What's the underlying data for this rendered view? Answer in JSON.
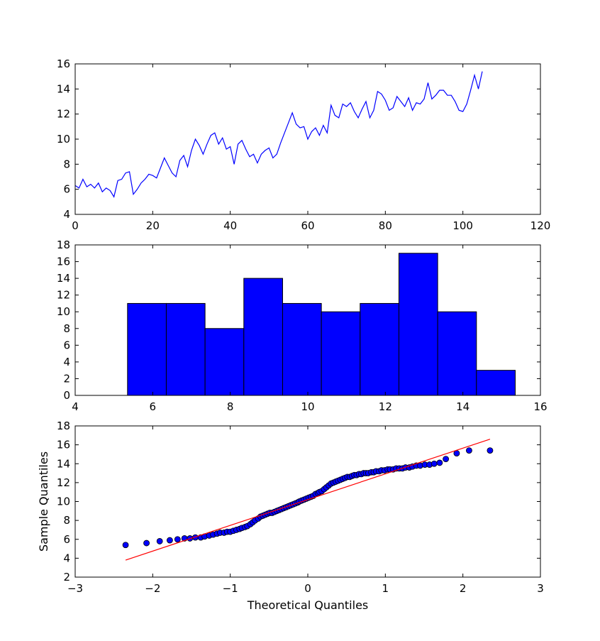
{
  "chart_data": [
    {
      "type": "line",
      "title": "",
      "xlabel": "",
      "ylabel": "",
      "xlim": [
        0,
        120
      ],
      "ylim": [
        4,
        16
      ],
      "xticks": [
        0,
        20,
        40,
        60,
        80,
        100,
        120
      ],
      "yticks": [
        4,
        6,
        8,
        10,
        12,
        14,
        16
      ],
      "grid": false,
      "series": [
        {
          "color": "#0000ff",
          "x": [
            0,
            1,
            2,
            3,
            4,
            5,
            6,
            7,
            8,
            9,
            10,
            11,
            12,
            13,
            14,
            15,
            16,
            17,
            18,
            19,
            20,
            21,
            22,
            23,
            24,
            25,
            26,
            27,
            28,
            29,
            30,
            31,
            32,
            33,
            34,
            35,
            36,
            37,
            38,
            39,
            40,
            41,
            42,
            43,
            44,
            45,
            46,
            47,
            48,
            49,
            50,
            51,
            52,
            53,
            54,
            55,
            56,
            57,
            58,
            59,
            60,
            61,
            62,
            63,
            64,
            65,
            66,
            67,
            68,
            69,
            70,
            71,
            72,
            73,
            74,
            75,
            76,
            77,
            78,
            79,
            80,
            81,
            82,
            83,
            84,
            85,
            86,
            87,
            88,
            89,
            90,
            91,
            92,
            93,
            94,
            95,
            96,
            97,
            98,
            99,
            100,
            101,
            102,
            103,
            104,
            105
          ],
          "y": [
            6.3,
            6.1,
            6.8,
            6.2,
            6.4,
            6.1,
            6.5,
            5.8,
            6.1,
            5.9,
            5.4,
            6.7,
            6.8,
            7.3,
            7.4,
            5.6,
            6.0,
            6.5,
            6.8,
            7.2,
            7.1,
            6.9,
            7.7,
            8.5,
            7.9,
            7.3,
            7.0,
            8.3,
            8.7,
            7.8,
            9.1,
            10.0,
            9.5,
            8.8,
            9.6,
            10.3,
            10.5,
            9.6,
            10.1,
            9.2,
            9.4,
            8.0,
            9.6,
            9.9,
            9.2,
            8.6,
            8.8,
            8.1,
            8.8,
            9.1,
            9.3,
            8.5,
            8.8,
            9.7,
            10.5,
            11.3,
            12.1,
            11.2,
            10.9,
            11.0,
            10.0,
            10.6,
            10.9,
            10.3,
            11.1,
            10.5,
            12.7,
            11.9,
            11.7,
            12.8,
            12.6,
            12.9,
            12.2,
            11.7,
            12.4,
            13.0,
            11.7,
            12.3,
            13.8,
            13.6,
            13.1,
            12.3,
            12.5,
            13.4,
            13.0,
            12.6,
            13.3,
            12.3,
            12.9,
            12.8,
            13.2,
            14.5,
            13.2,
            13.5,
            13.9,
            13.9,
            13.5,
            13.5,
            13.0,
            12.3,
            12.2,
            12.8,
            13.9,
            15.1,
            14.0,
            15.4
          ]
        }
      ]
    },
    {
      "type": "bar",
      "title": "",
      "xlabel": "",
      "ylabel": "",
      "xlim": [
        4,
        16
      ],
      "ylim": [
        0,
        18
      ],
      "xticks": [
        4,
        6,
        8,
        10,
        12,
        14,
        16
      ],
      "yticks": [
        0,
        2,
        4,
        6,
        8,
        10,
        12,
        14,
        16,
        18
      ],
      "grid": false,
      "bin_edges": [
        5.35,
        6.35,
        7.35,
        8.35,
        9.35,
        10.35,
        11.35,
        12.35,
        13.35,
        14.35,
        15.35
      ],
      "values": [
        11,
        11,
        8,
        14,
        11,
        10,
        11,
        17,
        10,
        3
      ],
      "color": "#0000ff"
    },
    {
      "type": "scatter",
      "title": "",
      "xlabel": "Theoretical Quantiles",
      "ylabel": "Sample Quantiles",
      "xlim": [
        -3,
        3
      ],
      "ylim": [
        2,
        18
      ],
      "xticks": [
        -3,
        -2,
        -1,
        0,
        1,
        2,
        3
      ],
      "yticks": [
        2,
        4,
        6,
        8,
        10,
        12,
        14,
        16,
        18
      ],
      "grid": false,
      "series": [
        {
          "color": "#0000ff",
          "x": [
            -2.35,
            -2.08,
            -1.91,
            -1.78,
            -1.68,
            -1.59,
            -1.52,
            -1.45,
            -1.38,
            -1.33,
            -1.27,
            -1.22,
            -1.17,
            -1.13,
            -1.08,
            -1.04,
            -1.0,
            -0.96,
            -0.92,
            -0.88,
            -0.85,
            -0.81,
            -0.78,
            -0.74,
            -0.71,
            -0.68,
            -0.64,
            -0.61,
            -0.58,
            -0.55,
            -0.52,
            -0.49,
            -0.46,
            -0.43,
            -0.4,
            -0.37,
            -0.34,
            -0.31,
            -0.28,
            -0.25,
            -0.22,
            -0.19,
            -0.16,
            -0.13,
            -0.11,
            -0.08,
            -0.05,
            -0.02,
            0.01,
            0.04,
            0.07,
            0.1,
            0.13,
            0.15,
            0.18,
            0.21,
            0.24,
            0.27,
            0.3,
            0.33,
            0.36,
            0.39,
            0.42,
            0.45,
            0.48,
            0.51,
            0.54,
            0.57,
            0.6,
            0.63,
            0.66,
            0.69,
            0.72,
            0.75,
            0.78,
            0.82,
            0.85,
            0.88,
            0.92,
            0.95,
            0.99,
            1.03,
            1.06,
            1.1,
            1.14,
            1.18,
            1.22,
            1.26,
            1.31,
            1.35,
            1.4,
            1.45,
            1.51,
            1.57,
            1.63,
            1.7,
            1.78,
            1.92,
            2.08,
            2.35
          ],
          "y": [
            5.4,
            5.6,
            5.8,
            5.9,
            6.0,
            6.1,
            6.1,
            6.2,
            6.2,
            6.3,
            6.4,
            6.5,
            6.6,
            6.7,
            6.7,
            6.8,
            6.8,
            6.9,
            7.0,
            7.1,
            7.2,
            7.3,
            7.4,
            7.6,
            7.8,
            8.0,
            8.2,
            8.4,
            8.5,
            8.6,
            8.7,
            8.8,
            8.8,
            8.9,
            9.0,
            9.1,
            9.2,
            9.3,
            9.4,
            9.5,
            9.6,
            9.7,
            9.8,
            9.9,
            10.0,
            10.1,
            10.2,
            10.3,
            10.4,
            10.5,
            10.6,
            10.8,
            10.9,
            11.0,
            11.1,
            11.3,
            11.5,
            11.7,
            11.9,
            12.0,
            12.1,
            12.2,
            12.3,
            12.4,
            12.5,
            12.6,
            12.6,
            12.7,
            12.8,
            12.8,
            12.9,
            12.9,
            13.0,
            13.0,
            13.0,
            13.1,
            13.1,
            13.2,
            13.2,
            13.3,
            13.3,
            13.4,
            13.4,
            13.4,
            13.5,
            13.5,
            13.5,
            13.6,
            13.6,
            13.7,
            13.8,
            13.8,
            13.9,
            13.9,
            14.0,
            14.1,
            14.5,
            15.1,
            15.4,
            15.4
          ]
        }
      ],
      "reference_line": {
        "x": [
          -2.35,
          2.35
        ],
        "y": [
          3.8,
          16.6
        ],
        "color": "#ff0000"
      }
    }
  ]
}
